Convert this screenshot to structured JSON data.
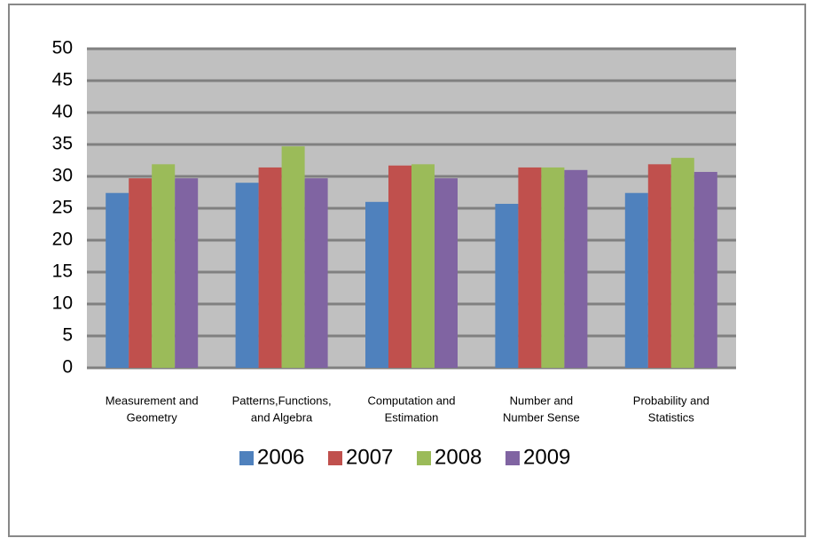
{
  "chart_data": {
    "type": "bar",
    "categories": [
      [
        "Measurement and",
        "Geometry"
      ],
      [
        "Patterns,Functions,",
        "and Algebra"
      ],
      [
        "Computation and",
        "Estimation"
      ],
      [
        "Number and",
        "Number Sense"
      ],
      [
        "Probability and",
        "Statistics"
      ]
    ],
    "series": [
      {
        "name": "2006",
        "color": "#4f81bd",
        "values": [
          27.4,
          29,
          26,
          25.7,
          27.4
        ]
      },
      {
        "name": "2007",
        "color": "#c0504d",
        "values": [
          29.7,
          31.4,
          31.7,
          31.4,
          31.9
        ]
      },
      {
        "name": "2008",
        "color": "#9bbb59",
        "values": [
          31.9,
          34.7,
          31.9,
          31.4,
          32.9
        ]
      },
      {
        "name": "2009",
        "color": "#8064a2",
        "values": [
          29.7,
          29.7,
          29.7,
          31,
          30.7
        ]
      }
    ],
    "ylim": [
      0,
      50
    ],
    "yticks": [
      0,
      5,
      10,
      15,
      20,
      25,
      30,
      35,
      40,
      45,
      50
    ],
    "grid": true,
    "legend": "bottom"
  }
}
